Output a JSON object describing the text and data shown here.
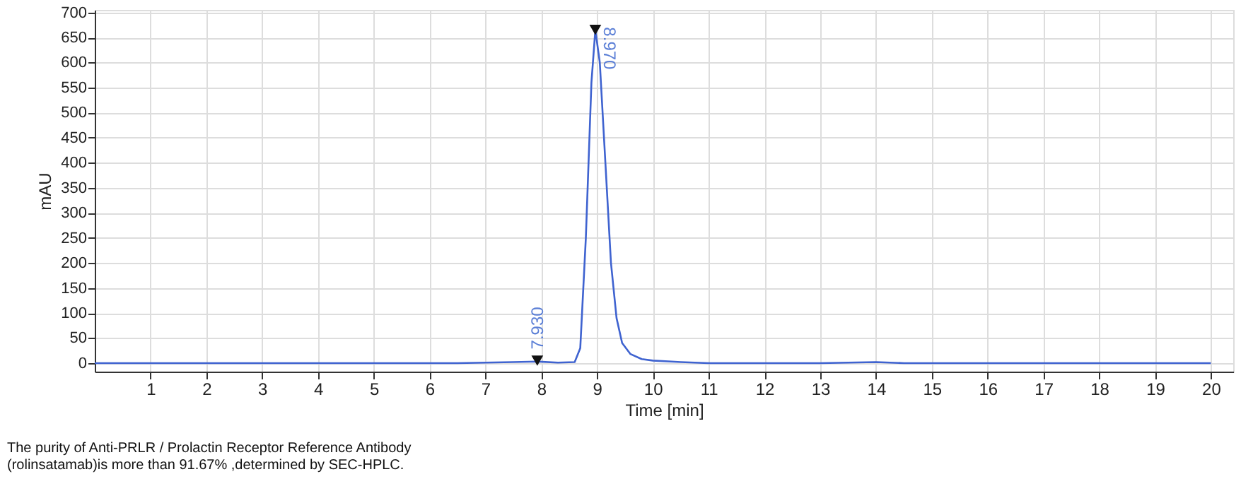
{
  "chart_data": {
    "type": "line",
    "xlabel": "Time [min]",
    "ylabel": "mAU",
    "x": [
      0,
      2,
      4,
      6,
      6.5,
      7,
      7.5,
      7.93,
      8.3,
      8.6,
      8.7,
      8.8,
      8.9,
      8.97,
      9.05,
      9.15,
      9.25,
      9.35,
      9.45,
      9.6,
      9.8,
      10.0,
      10.5,
      11,
      13,
      13.5,
      14,
      14.5,
      16,
      18,
      20
    ],
    "series": [
      {
        "color": "#3f63d0",
        "values": [
          0,
          0,
          0,
          0,
          0,
          1,
          2,
          3,
          1,
          2,
          30,
          250,
          560,
          665,
          600,
          400,
          200,
          90,
          40,
          18,
          8,
          5,
          2,
          0,
          0,
          1,
          2,
          0,
          0,
          0,
          0
        ]
      }
    ],
    "xlim": [
      0,
      20.4
    ],
    "xticks": [
      1,
      2,
      3,
      4,
      5,
      6,
      7,
      8,
      9,
      10,
      11,
      12,
      13,
      14,
      15,
      16,
      17,
      18,
      19,
      20
    ],
    "ylim": [
      -17,
      705
    ],
    "yticks": [
      0,
      50,
      100,
      150,
      200,
      250,
      300,
      350,
      400,
      450,
      500,
      550,
      600,
      650,
      700
    ],
    "grid": true,
    "annotations": [
      {
        "text": "7.930",
        "x": 7.93,
        "y": 5
      },
      {
        "text": "8.970",
        "x": 8.97,
        "y": 665
      },
      "The purity of Anti-PRLR / Prolactin Receptor Reference Antibody",
      "(rolinsatamab)is more than 91.67% ,determined by SEC-HPLC."
    ]
  }
}
